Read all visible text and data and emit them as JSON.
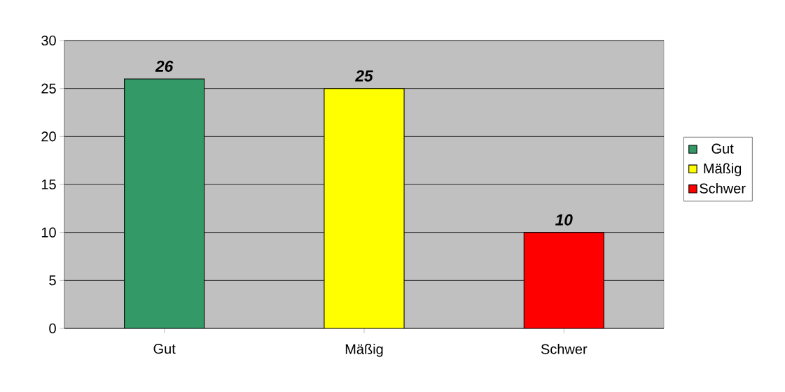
{
  "chart_data": {
    "type": "bar",
    "categories": [
      "Gut",
      "Mäßig",
      "Schwer"
    ],
    "series": [
      {
        "name": "Gut",
        "color": "#339966",
        "values": [
          26,
          null,
          null
        ]
      },
      {
        "name": "Mäßig",
        "color": "#ffff00",
        "values": [
          null,
          25,
          null
        ]
      },
      {
        "name": "Schwer",
        "color": "#ff0000",
        "values": [
          null,
          null,
          10
        ]
      }
    ],
    "ylim": [
      0,
      30
    ],
    "yticks": [
      0,
      5,
      10,
      15,
      20,
      25,
      30
    ],
    "grid": "y",
    "legend": "right",
    "data_labels": true
  }
}
